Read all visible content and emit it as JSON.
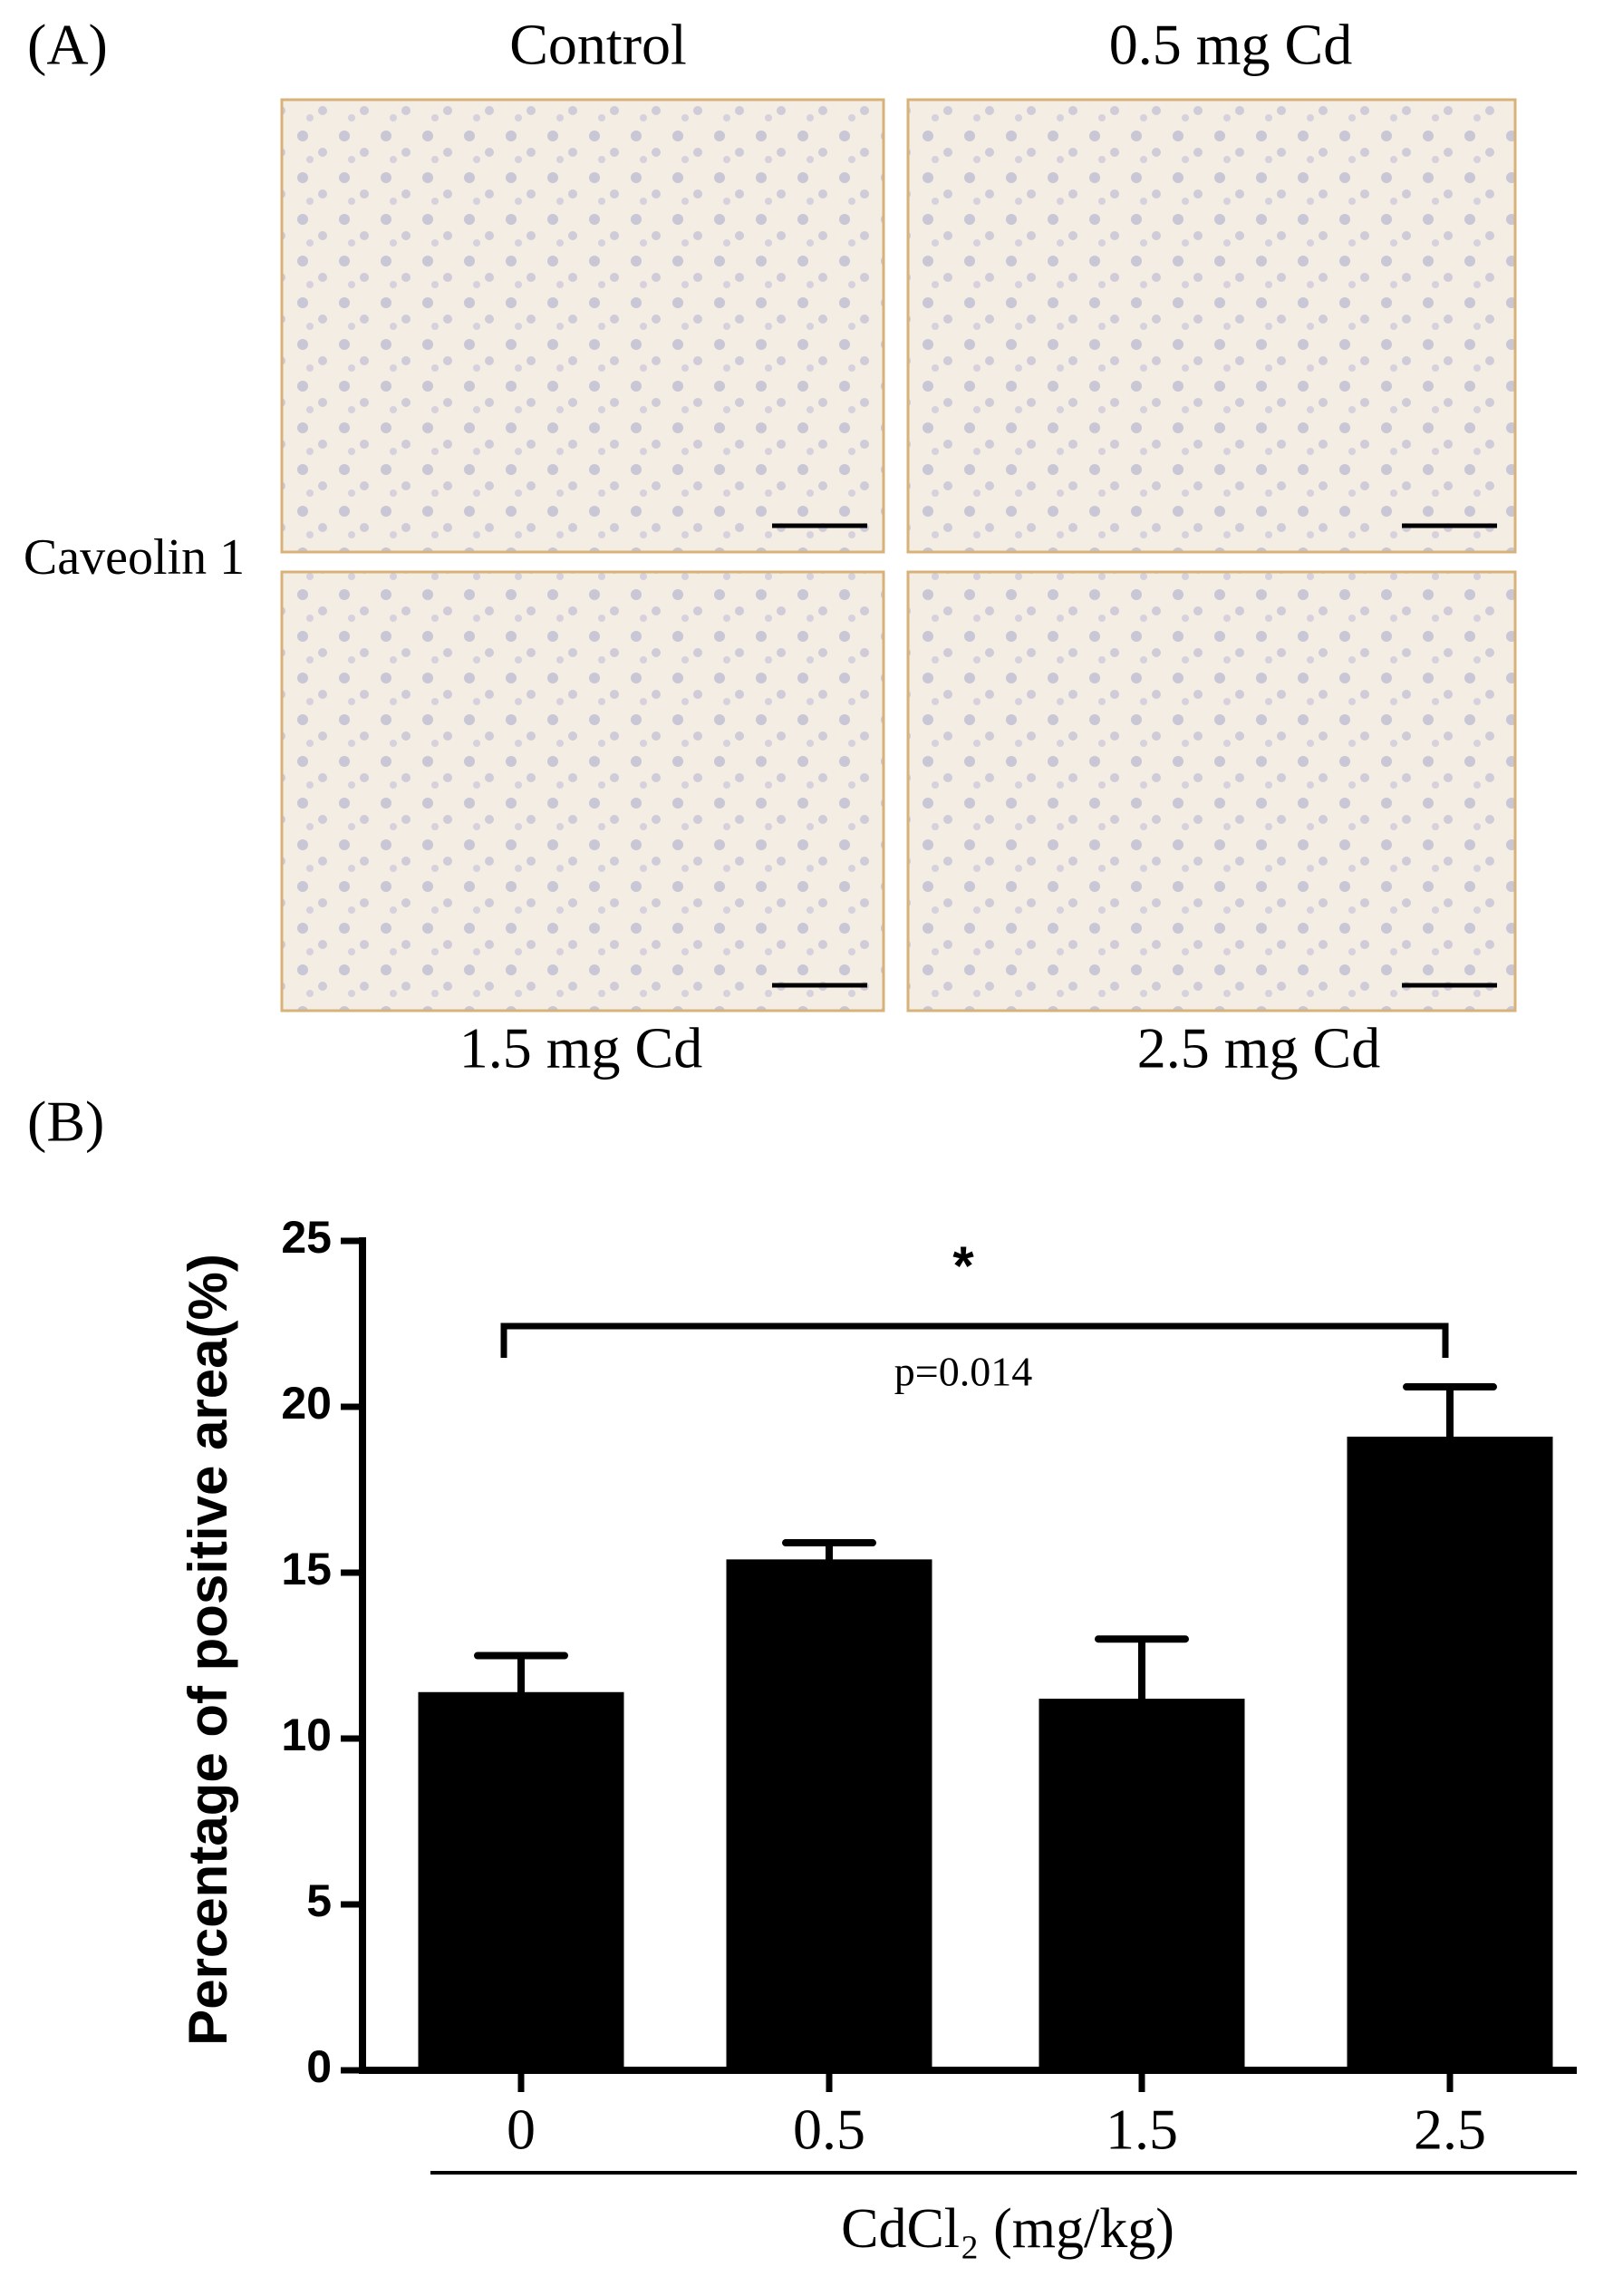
{
  "panel_a": {
    "label": "(A)",
    "columns": [
      "Control",
      "0.5 mg Cd"
    ],
    "bottom_labels": [
      "1.5 mg Cd",
      "2.5 mg Cd"
    ],
    "row_label": "Caveolin 1"
  },
  "chart_data": {
    "type": "bar",
    "panel_label": "(B)",
    "ylabel": "Percentage of positive area(%)",
    "xlabel": "CdCl₂ (mg/kg)",
    "categories": [
      "0",
      "0.5",
      "1.5",
      "2.5"
    ],
    "values": [
      11.4,
      15.4,
      11.2,
      19.1
    ],
    "errors": [
      1.1,
      0.5,
      1.8,
      1.5
    ],
    "color": "#000000",
    "ylim": [
      0,
      25
    ],
    "yticks": [
      0,
      5,
      10,
      15,
      20,
      25
    ],
    "annotations": [
      "*",
      "p=0.014"
    ]
  }
}
